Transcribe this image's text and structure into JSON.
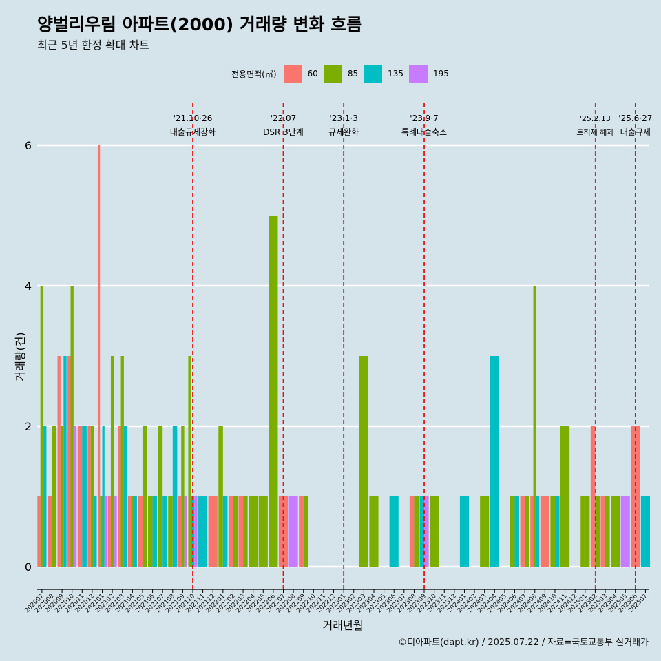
{
  "title": "양벌리우림 아파트(2000) 거래량 변화 흐름",
  "subtitle": "최근 5년 한정 확대 차트",
  "caption": "©디아파트(dapt.kr) / 2025.07.22 / 자료=국토교통부 실거래가",
  "legend": {
    "title": "전용면적(㎡)",
    "items": [
      {
        "label": "60",
        "color": "#f8766d"
      },
      {
        "label": "85",
        "color": "#7cae00"
      },
      {
        "label": "135",
        "color": "#00bfc4"
      },
      {
        "label": "195",
        "color": "#c77cff"
      }
    ]
  },
  "chart_data": {
    "type": "bar",
    "xlabel": "거래년월",
    "ylabel": "거래량(건)",
    "ylim": [
      0,
      6
    ],
    "yticks": [
      0,
      2,
      4,
      6
    ],
    "grid": true,
    "categories": [
      "202007",
      "202008",
      "202009",
      "202010",
      "202011",
      "202012",
      "202101",
      "202102",
      "202103",
      "202104",
      "202105",
      "202106",
      "202107",
      "202108",
      "202109",
      "202110",
      "202111",
      "202112",
      "202201",
      "202202",
      "202203",
      "202204",
      "202205",
      "202206",
      "202207",
      "202208",
      "202209",
      "202210",
      "202211",
      "202212",
      "202301",
      "202302",
      "202303",
      "202304",
      "202305",
      "202306",
      "202307",
      "202308",
      "202309",
      "202310",
      "202311",
      "202312",
      "202401",
      "202402",
      "202403",
      "202404",
      "202405",
      "202406",
      "202407",
      "202408",
      "202409",
      "202410",
      "202411",
      "202412",
      "202501",
      "202502",
      "202503",
      "202504",
      "202505",
      "202506",
      "202507"
    ],
    "series": [
      {
        "name": "60",
        "values": [
          1,
          1,
          3,
          3,
          2,
          2,
          6,
          1,
          2,
          1,
          1,
          0,
          0,
          0,
          1,
          0,
          0,
          1,
          0,
          1,
          1,
          0,
          0,
          0,
          1,
          0,
          1,
          0,
          0,
          0,
          0,
          0,
          0,
          0,
          0,
          0,
          0,
          1,
          0,
          0,
          0,
          0,
          0,
          0,
          0,
          0,
          0,
          0,
          1,
          1,
          1,
          0,
          0,
          0,
          0,
          2,
          1,
          0,
          0,
          2,
          0
        ]
      },
      {
        "name": "85",
        "values": [
          4,
          2,
          2,
          4,
          0,
          2,
          1,
          3,
          3,
          1,
          2,
          1,
          2,
          1,
          2,
          3,
          0,
          0,
          2,
          1,
          1,
          1,
          1,
          5,
          0,
          0,
          1,
          0,
          0,
          0,
          0,
          0,
          3,
          1,
          0,
          0,
          0,
          1,
          0,
          1,
          0,
          0,
          0,
          0,
          1,
          0,
          0,
          1,
          1,
          4,
          0,
          1,
          2,
          0,
          1,
          1,
          1,
          1,
          0,
          0,
          0
        ]
      },
      {
        "name": "135",
        "values": [
          2,
          0,
          3,
          0,
          2,
          1,
          2,
          0,
          2,
          1,
          0,
          1,
          1,
          2,
          0,
          1,
          1,
          0,
          1,
          0,
          0,
          0,
          0,
          0,
          0,
          0,
          0,
          0,
          0,
          0,
          0,
          0,
          0,
          0,
          0,
          1,
          0,
          0,
          1,
          0,
          0,
          0,
          1,
          0,
          0,
          3,
          0,
          1,
          0,
          1,
          0,
          1,
          0,
          0,
          0,
          0,
          0,
          0,
          0,
          0,
          1
        ]
      },
      {
        "name": "195",
        "values": [
          0,
          0,
          0,
          2,
          0,
          0,
          1,
          1,
          0,
          0,
          0,
          0,
          0,
          0,
          1,
          1,
          0,
          0,
          0,
          0,
          0,
          0,
          0,
          0,
          0,
          1,
          0,
          0,
          0,
          0,
          0,
          0,
          0,
          0,
          0,
          0,
          0,
          0,
          1,
          0,
          0,
          0,
          0,
          0,
          0,
          0,
          0,
          0,
          0,
          0,
          0,
          0,
          0,
          0,
          0,
          0,
          0,
          0,
          1,
          0,
          0
        ]
      }
    ],
    "annotations": [
      {
        "x": "202110",
        "date": "'21.10·26",
        "label": "대출규제강화"
      },
      {
        "x": "202207",
        "date": "'22.07",
        "label": "DSR 3단계"
      },
      {
        "x": "202301",
        "date": "'23.1·3",
        "label": "규제완화"
      },
      {
        "x": "202309",
        "date": "'23.9·7",
        "label": "특례대출축소"
      },
      {
        "x": "202502",
        "date": "'25.2.13",
        "label": "토허제 해제"
      },
      {
        "x": "202506",
        "date": "'25.6·27",
        "label": "대출규제"
      }
    ]
  }
}
